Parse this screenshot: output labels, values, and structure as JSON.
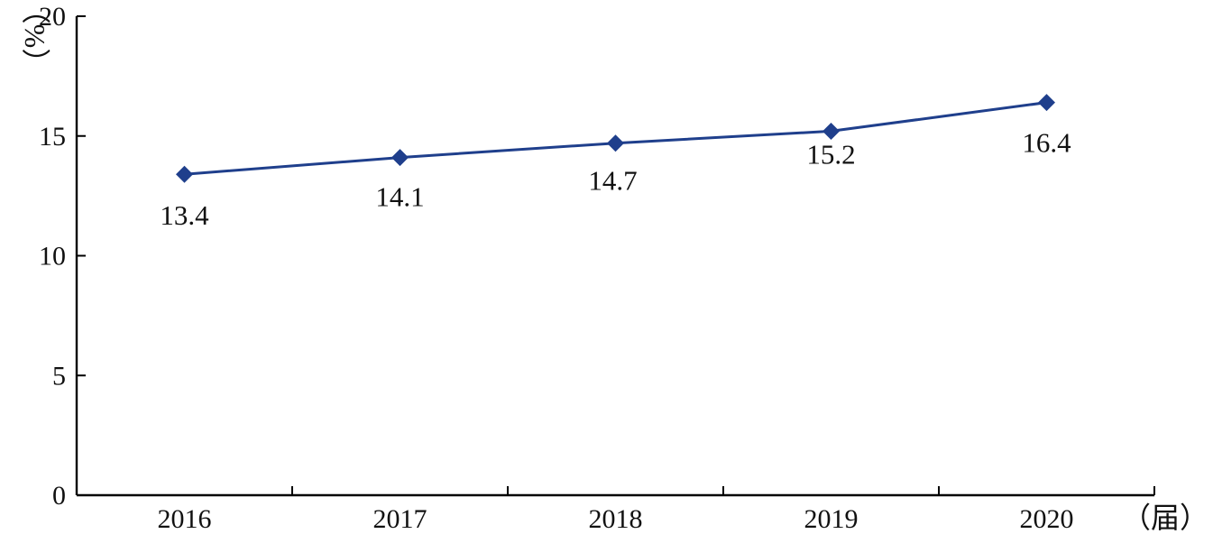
{
  "chart_data": {
    "type": "line",
    "categories": [
      "2016",
      "2017",
      "2018",
      "2019",
      "2020"
    ],
    "series": [
      {
        "values": [
          13.4,
          14.1,
          14.7,
          15.2,
          16.4
        ],
        "data_labels": [
          "13.4",
          "14.1",
          "14.7",
          "15.2",
          "16.4"
        ],
        "color": "#1f3f8c",
        "marker": "diamond"
      }
    ],
    "ylim": [
      0,
      20
    ],
    "yticks": [
      "0",
      "5",
      "10",
      "15",
      "20"
    ],
    "ylabel": "（%）",
    "xlabel": "（届）",
    "grid": false,
    "legend": "none"
  }
}
